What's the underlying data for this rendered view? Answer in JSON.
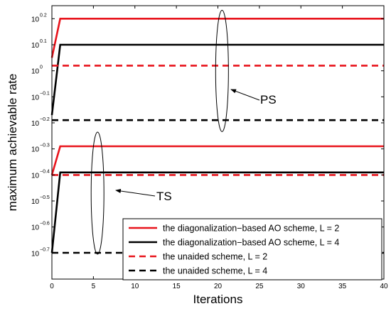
{
  "chart_data": {
    "type": "line",
    "xlabel": "Iterations",
    "ylabel": "maximum achievable rate",
    "xlim": [
      0,
      40
    ],
    "ylim_log10": [
      -0.8,
      0.25
    ],
    "y_scale": "log",
    "x_ticks": [
      0,
      5,
      10,
      15,
      20,
      25,
      30,
      35,
      40
    ],
    "y_ticks": [
      {
        "base": "10",
        "exp": "0.2",
        "log10": 0.2
      },
      {
        "base": "10",
        "exp": "0.1",
        "log10": 0.1
      },
      {
        "base": "10",
        "exp": "0",
        "log10": 0.0
      },
      {
        "base": "10",
        "exp": "−0.1",
        "log10": -0.1
      },
      {
        "base": "10",
        "exp": "−0.2",
        "log10": -0.2
      },
      {
        "base": "10",
        "exp": "−0.3",
        "log10": -0.3
      },
      {
        "base": "10",
        "exp": "−0.4",
        "log10": -0.4
      },
      {
        "base": "10",
        "exp": "−0.5",
        "log10": -0.5
      },
      {
        "base": "10",
        "exp": "−0.6",
        "log10": -0.6
      },
      {
        "base": "10",
        "exp": "−0.7",
        "log10": -0.7
      }
    ],
    "grid": false,
    "legend_position": "bottom-right",
    "series": [
      {
        "name": "the diagonalization−based AO scheme, L = 2",
        "group": "PS",
        "color": "#e8141c",
        "dash": "solid",
        "x": [
          0,
          1,
          40
        ],
        "y": [
          1.122,
          1.585,
          1.585
        ]
      },
      {
        "name": "the diagonalization−based AO scheme, L = 4",
        "group": "PS",
        "color": "#000000",
        "dash": "solid",
        "x": [
          0,
          1,
          40
        ],
        "y": [
          0.676,
          1.259,
          1.259
        ]
      },
      {
        "name": "the unaided scheme, L = 2",
        "group": "PS",
        "color": "#e8141c",
        "dash": "dashed",
        "x": [
          0,
          40
        ],
        "y": [
          1.047,
          1.047
        ]
      },
      {
        "name": "the unaided scheme, L = 4",
        "group": "PS",
        "color": "#000000",
        "dash": "dashed",
        "x": [
          0,
          40
        ],
        "y": [
          0.646,
          0.646
        ]
      },
      {
        "name": "the diagonalization−based AO scheme, L = 2",
        "group": "TS",
        "color": "#e8141c",
        "dash": "solid",
        "x": [
          0,
          1,
          40
        ],
        "y": [
          0.398,
          0.513,
          0.513
        ]
      },
      {
        "name": "the diagonalization−based AO scheme, L = 4",
        "group": "TS",
        "color": "#000000",
        "dash": "solid",
        "x": [
          0,
          1,
          40
        ],
        "y": [
          0.2,
          0.407,
          0.407
        ]
      },
      {
        "name": "the unaided scheme, L = 2",
        "group": "TS",
        "color": "#e8141c",
        "dash": "dashed",
        "x": [
          0,
          40
        ],
        "y": [
          0.398,
          0.398
        ]
      },
      {
        "name": "the unaided scheme, L = 4",
        "group": "TS",
        "color": "#000000",
        "dash": "dashed",
        "x": [
          0,
          40
        ],
        "y": [
          0.2,
          0.2
        ]
      }
    ],
    "legend": [
      {
        "label": "the diagonalization−based AO scheme, L = 2",
        "color": "#e8141c",
        "dash": "solid"
      },
      {
        "label": "the diagonalization−based AO scheme, L = 4",
        "color": "#000000",
        "dash": "solid"
      },
      {
        "label": "the unaided scheme, L = 2",
        "color": "#e8141c",
        "dash": "dashed"
      },
      {
        "label": "the unaided scheme, L = 4",
        "color": "#000000",
        "dash": "dashed"
      }
    ],
    "annotations": [
      {
        "label": "PS",
        "target_x": 20.5,
        "target_y_log10": 0.05
      },
      {
        "label": "TS",
        "target_x": 5.5,
        "target_y_log10": -0.52
      }
    ]
  }
}
